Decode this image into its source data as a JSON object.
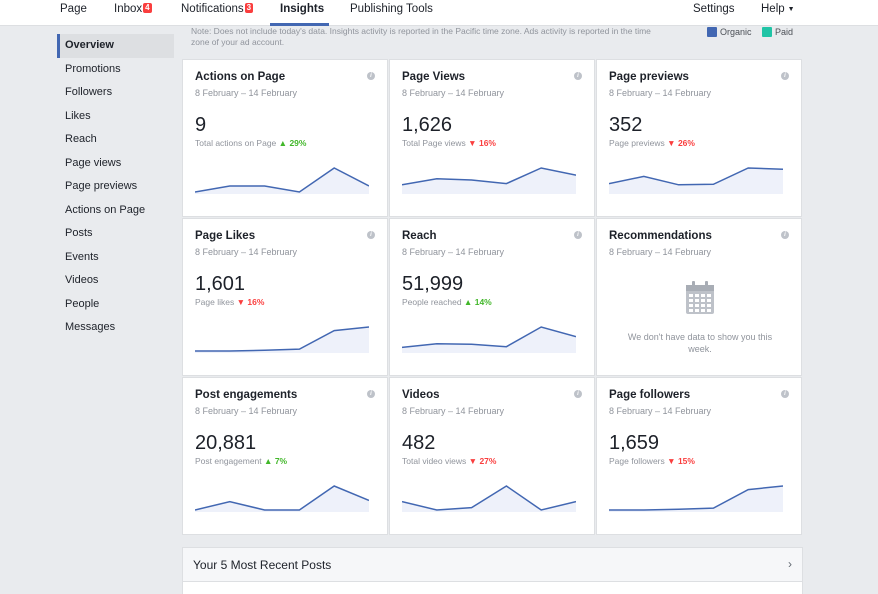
{
  "topnav": {
    "page": "Page",
    "inbox": "Inbox",
    "inbox_badge": "4",
    "notifications": "Notifications",
    "notifications_badge": "3",
    "insights": "Insights",
    "publishing_tools": "Publishing Tools",
    "settings": "Settings",
    "help": "Help"
  },
  "sidebar": {
    "items": [
      {
        "label": "Overview"
      },
      {
        "label": "Promotions"
      },
      {
        "label": "Followers"
      },
      {
        "label": "Likes"
      },
      {
        "label": "Reach"
      },
      {
        "label": "Page views"
      },
      {
        "label": "Page previews"
      },
      {
        "label": "Actions on Page"
      },
      {
        "label": "Posts"
      },
      {
        "label": "Events"
      },
      {
        "label": "Videos"
      },
      {
        "label": "People"
      },
      {
        "label": "Messages"
      }
    ]
  },
  "note": "Note: Does not include today's data. Insights activity is reported in the Pacific time zone. Ads activity is reported in the time zone of your ad account.",
  "legend": {
    "organic": "Organic",
    "organic_color": "#4267b2",
    "paid": "Paid",
    "paid_color": "#20c4a6"
  },
  "colors": {
    "line": "#4267b2",
    "fill": "#eef1fa",
    "up": "#42b72a",
    "down": "#fa3e3e"
  },
  "cards": [
    {
      "title": "Actions on Page",
      "date": "8 February – 14 February",
      "value": "9",
      "sub": "Total actions on Page",
      "change": "29%",
      "dir": "up",
      "spark": [
        0.0,
        0.25,
        0.25,
        0.0,
        1.0,
        0.25
      ]
    },
    {
      "title": "Page Views",
      "date": "8 February – 14 February",
      "value": "1,626",
      "sub": "Total Page views",
      "change": "16%",
      "dir": "down",
      "spark": [
        0.3,
        0.55,
        0.5,
        0.35,
        1.0,
        0.7
      ]
    },
    {
      "title": "Page previews",
      "date": "8 February – 14 February",
      "value": "352",
      "sub": "Page previews",
      "change": "26%",
      "dir": "down",
      "spark": [
        0.35,
        0.65,
        0.3,
        0.32,
        1.0,
        0.95
      ]
    },
    {
      "title": "Page Likes",
      "date": "8 February – 14 February",
      "value": "1,601",
      "sub": "Page likes",
      "change": "16%",
      "dir": "down",
      "spark": [
        0.0,
        0.0,
        0.03,
        0.08,
        0.85,
        1.0
      ]
    },
    {
      "title": "Reach",
      "date": "8 February – 14 February",
      "value": "51,999",
      "sub": "People reached",
      "change": "14%",
      "dir": "up",
      "spark": [
        0.15,
        0.3,
        0.28,
        0.18,
        1.0,
        0.6
      ]
    },
    {
      "title": "Recommendations",
      "date": "8 February – 14 February",
      "empty": "We don't have data to show you this week."
    },
    {
      "title": "Post engagements",
      "date": "8 February – 14 February",
      "value": "20,881",
      "sub": "Post engagement",
      "change": "7%",
      "dir": "up",
      "spark": [
        0.0,
        0.35,
        0.0,
        0.0,
        1.0,
        0.4
      ]
    },
    {
      "title": "Videos",
      "date": "8 February – 14 February",
      "value": "482",
      "sub": "Total video views",
      "change": "27%",
      "dir": "down",
      "spark": [
        0.35,
        0.0,
        0.1,
        1.0,
        0.0,
        0.35
      ]
    },
    {
      "title": "Page followers",
      "date": "8 February – 14 February",
      "value": "1,659",
      "sub": "Page followers",
      "change": "15%",
      "dir": "down",
      "spark": [
        0.0,
        0.0,
        0.03,
        0.08,
        0.85,
        1.0
      ]
    }
  ],
  "recent_posts": {
    "title": "Your 5 Most Recent Posts"
  }
}
